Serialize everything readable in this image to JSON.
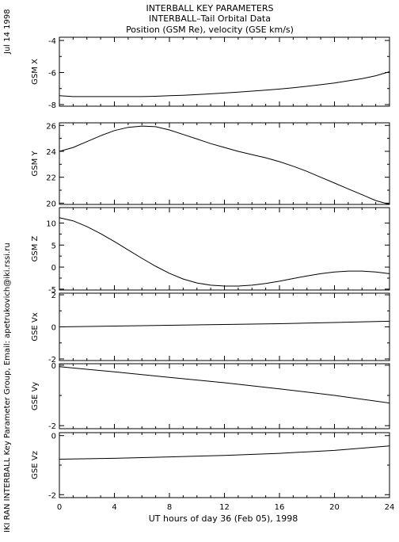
{
  "header": {
    "line1": "INTERBALL KEY PARAMETERS",
    "line2": "INTERBALL–Tail Orbital Data",
    "line3": "Position (GSM Re), velocity (GSE km/s)"
  },
  "side": {
    "date": "Jul 14 1998",
    "credit": "IKI RAN INTERBALL Key Parameter Group, Email: apetrukovich@iki.rssi.ru"
  },
  "chart_data": {
    "type": "line",
    "xlabel": "UT hours of day  36 (Feb 05), 1998",
    "xlim": [
      0,
      24
    ],
    "xticks": [
      0,
      4,
      8,
      12,
      16,
      20,
      24
    ],
    "panels": [
      {
        "ylabel": "GSM X",
        "ylim": [
          -8.1,
          -3.8
        ],
        "yticks": [
          -4,
          -6,
          -8
        ],
        "x": [
          0,
          1,
          2,
          3,
          4,
          5,
          6,
          7,
          8,
          9,
          10,
          11,
          12,
          13,
          14,
          15,
          16,
          17,
          18,
          19,
          20,
          21,
          22,
          23,
          24
        ],
        "y": [
          -7.45,
          -7.5,
          -7.5,
          -7.5,
          -7.5,
          -7.5,
          -7.5,
          -7.48,
          -7.45,
          -7.42,
          -7.38,
          -7.33,
          -7.28,
          -7.22,
          -7.16,
          -7.1,
          -7.03,
          -6.95,
          -6.86,
          -6.76,
          -6.65,
          -6.52,
          -6.38,
          -6.2,
          -5.95
        ]
      },
      {
        "ylabel": "GSM Y",
        "ylim": [
          19.9,
          26.2
        ],
        "yticks": [
          26,
          24,
          22,
          20
        ],
        "x": [
          0,
          1,
          2,
          3,
          4,
          5,
          6,
          7,
          8,
          9,
          10,
          11,
          12,
          13,
          14,
          15,
          16,
          17,
          18,
          19,
          20,
          21,
          22,
          23,
          24
        ],
        "y": [
          24.0,
          24.3,
          24.75,
          25.2,
          25.6,
          25.85,
          25.95,
          25.9,
          25.65,
          25.3,
          24.95,
          24.6,
          24.3,
          24.0,
          23.75,
          23.5,
          23.2,
          22.85,
          22.45,
          22.0,
          21.55,
          21.1,
          20.65,
          20.2,
          19.9
        ]
      },
      {
        "ylabel": "GSM Z",
        "ylim": [
          -5.2,
          13.5
        ],
        "yticks": [
          10,
          5,
          0,
          -5
        ],
        "x": [
          0,
          1,
          2,
          3,
          4,
          5,
          6,
          7,
          8,
          9,
          10,
          11,
          12,
          13,
          14,
          15,
          16,
          17,
          18,
          19,
          20,
          21,
          22,
          23,
          24
        ],
        "y": [
          11.2,
          10.5,
          9.2,
          7.6,
          5.8,
          3.9,
          2.0,
          0.2,
          -1.4,
          -2.7,
          -3.6,
          -4.1,
          -4.3,
          -4.3,
          -4.1,
          -3.7,
          -3.2,
          -2.6,
          -2.0,
          -1.5,
          -1.1,
          -0.9,
          -0.9,
          -1.1,
          -1.5
        ]
      },
      {
        "ylabel": "GSE Vx",
        "ylim": [
          -2.1,
          2.1
        ],
        "yticks": [
          2,
          0,
          -2
        ],
        "x": [
          0,
          4,
          8,
          12,
          16,
          20,
          24
        ],
        "y": [
          0.0,
          0.05,
          0.1,
          0.15,
          0.2,
          0.27,
          0.35
        ]
      },
      {
        "ylabel": "GSE Vy",
        "ylim": [
          -2.1,
          0.05
        ],
        "yticks": [
          0,
          -2
        ],
        "x": [
          0,
          4,
          8,
          12,
          16,
          20,
          24
        ],
        "y": [
          -0.05,
          -0.22,
          -0.4,
          -0.58,
          -0.78,
          -1.0,
          -1.25
        ]
      },
      {
        "ylabel": "GSE Vz",
        "ylim": [
          -2.1,
          0.1
        ],
        "yticks": [
          0,
          -2
        ],
        "x": [
          0,
          4,
          8,
          12,
          16,
          20,
          24
        ],
        "y": [
          -0.8,
          -0.77,
          -0.72,
          -0.67,
          -0.6,
          -0.5,
          -0.35
        ]
      }
    ]
  }
}
